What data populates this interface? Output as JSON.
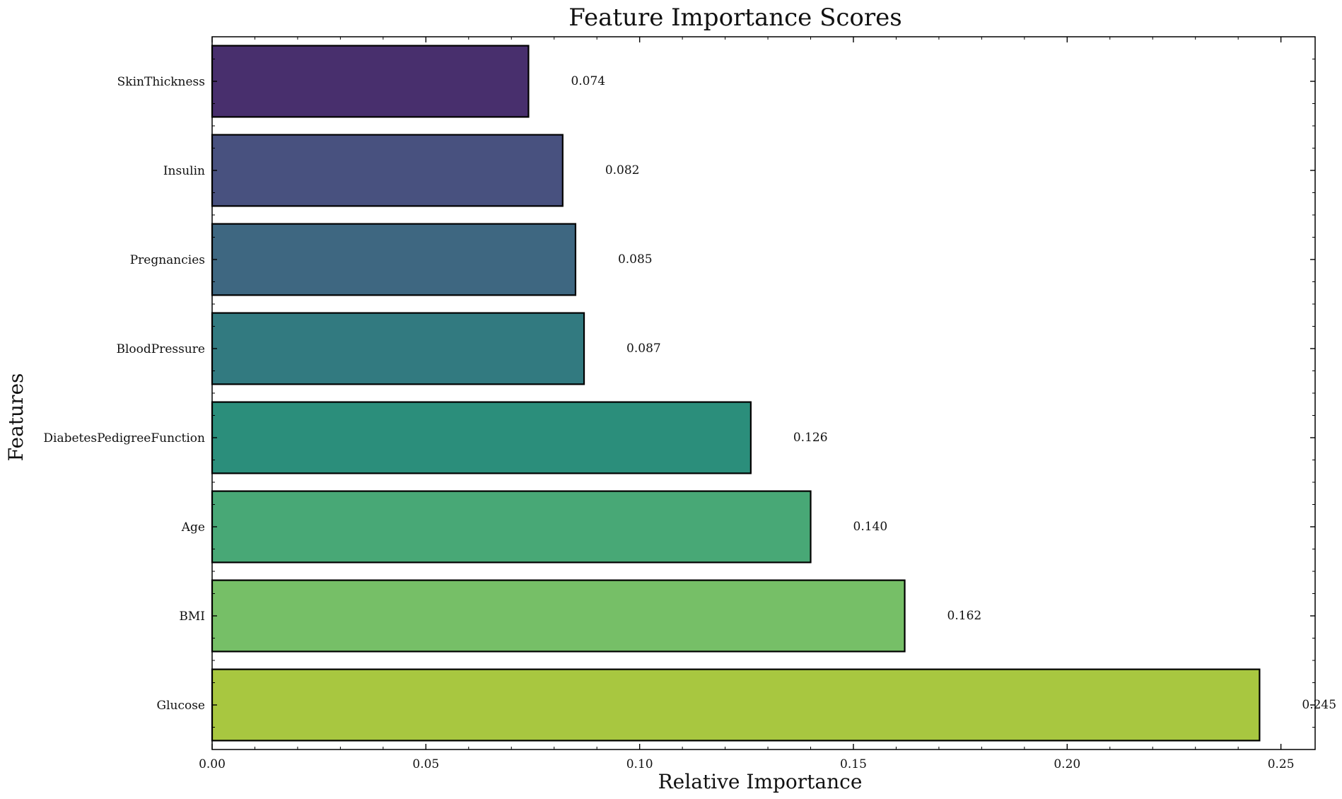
{
  "chart_data": {
    "type": "bar",
    "orientation": "horizontal",
    "title": "Feature Importance Scores",
    "xlabel": "Relative Importance",
    "ylabel": "Features",
    "xlim": [
      0,
      0.258
    ],
    "xticks": [
      "0.00",
      "0.05",
      "0.10",
      "0.15",
      "0.20",
      "0.25"
    ],
    "categories": [
      "SkinThickness",
      "Insulin",
      "Pregnancies",
      "BloodPressure",
      "DiabetesPedigreeFunction",
      "Age",
      "BMI",
      "Glucose"
    ],
    "values": [
      0.074,
      0.082,
      0.085,
      0.087,
      0.126,
      0.14,
      0.162,
      0.245
    ],
    "value_labels": [
      "0.074",
      "0.082",
      "0.085",
      "0.087",
      "0.126",
      "0.140",
      "0.162",
      "0.245"
    ],
    "colors": [
      "#482f6d",
      "#48517f",
      "#3e6781",
      "#327a80",
      "#2b8e7b",
      "#48a876",
      "#76bf67",
      "#a8c740"
    ],
    "grid": false,
    "legend": "none"
  }
}
